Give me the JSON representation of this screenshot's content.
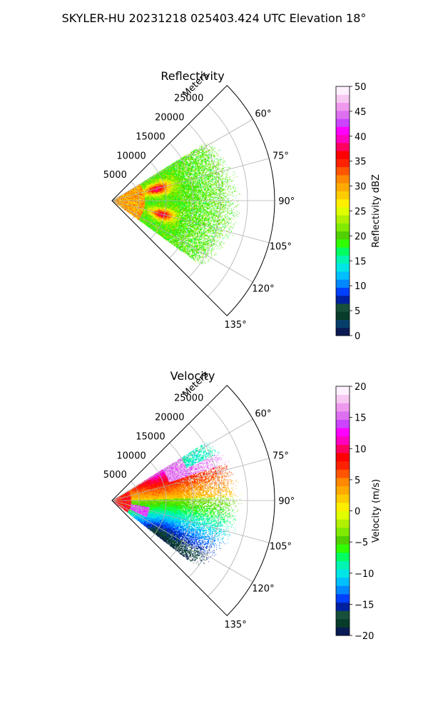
{
  "suptitle": "SKYLER-HU  20231218  025403.424 UTC Elevation 18°",
  "chart_data": [
    {
      "type": "heatmap",
      "subtype": "polar-sector-ppi",
      "title": "Reflectivity",
      "radial_label": "Meters",
      "theta_range_deg": [
        45,
        135
      ],
      "r_range_m": [
        0,
        30000
      ],
      "r_ticks": [
        "5000",
        "10000",
        "15000",
        "20000",
        "25000"
      ],
      "theta_ticks": [
        "60°",
        "75°",
        "90°",
        "105°",
        "120°",
        "135°"
      ],
      "grid": true,
      "colorbar": {
        "label": "Reflectivity dBZ",
        "min": 0,
        "max": 50,
        "ticks": [
          "0",
          "5",
          "10",
          "15",
          "20",
          "25",
          "30",
          "35",
          "40",
          "45",
          "50"
        ],
        "colors": [
          "#0a1a55",
          "#06406a",
          "#083c2a",
          "#16503a",
          "#0020a0",
          "#0040ff",
          "#0088ff",
          "#00bfff",
          "#00e6e6",
          "#00f5b0",
          "#00ff60",
          "#30ff00",
          "#50d000",
          "#80ea00",
          "#b0f000",
          "#e0ff00",
          "#ffee00",
          "#ffcc00",
          "#ffaa00",
          "#ff8800",
          "#ff5500",
          "#ff2200",
          "#ff0000",
          "#ff0060",
          "#ff00c0",
          "#ff00ff",
          "#cc44ff",
          "#dd70f0",
          "#ee99ee",
          "#f7c8f2",
          "#fff0ff"
        ]
      },
      "echo_summary": "strongest 35-45 dBZ near 5-10 km at 70-80° and 100-110°; 15-25 dBZ out to ~20 km"
    },
    {
      "type": "heatmap",
      "subtype": "polar-sector-ppi",
      "title": "Velocity",
      "radial_label": "Meters",
      "theta_range_deg": [
        45,
        135
      ],
      "r_range_m": [
        0,
        30000
      ],
      "r_ticks": [
        "5000",
        "10000",
        "15000",
        "20000",
        "25000"
      ],
      "theta_ticks": [
        "60°",
        "75°",
        "90°",
        "105°",
        "120°",
        "135°"
      ],
      "grid": true,
      "colorbar": {
        "label": "Velocity (m/s)",
        "min": -20,
        "max": 20,
        "ticks": [
          "−20",
          "−15",
          "−10",
          "−5",
          "0",
          "5",
          "10",
          "15",
          "20"
        ],
        "colors": [
          "#0a1a55",
          "#083c2a",
          "#16503a",
          "#0020a0",
          "#0040ff",
          "#0088ff",
          "#00bfff",
          "#00e6e6",
          "#00f5b0",
          "#00ff60",
          "#30ff00",
          "#50d000",
          "#80ea00",
          "#b0f000",
          "#e0ff00",
          "#ffee00",
          "#ffcc00",
          "#ffaa00",
          "#ff8800",
          "#ff5500",
          "#ff2200",
          "#ff0000",
          "#ff0060",
          "#ff00c0",
          "#ff00ff",
          "#cc44ff",
          "#dd70f0",
          "#ee99ee",
          "#f7c8f2",
          "#fff0ff"
        ]
      },
      "echo_summary": "+5 to +15 m/s at 60-85°; -10 to -15 m/s at 100-115°; +15 m/s near radar at 100-110°"
    }
  ]
}
